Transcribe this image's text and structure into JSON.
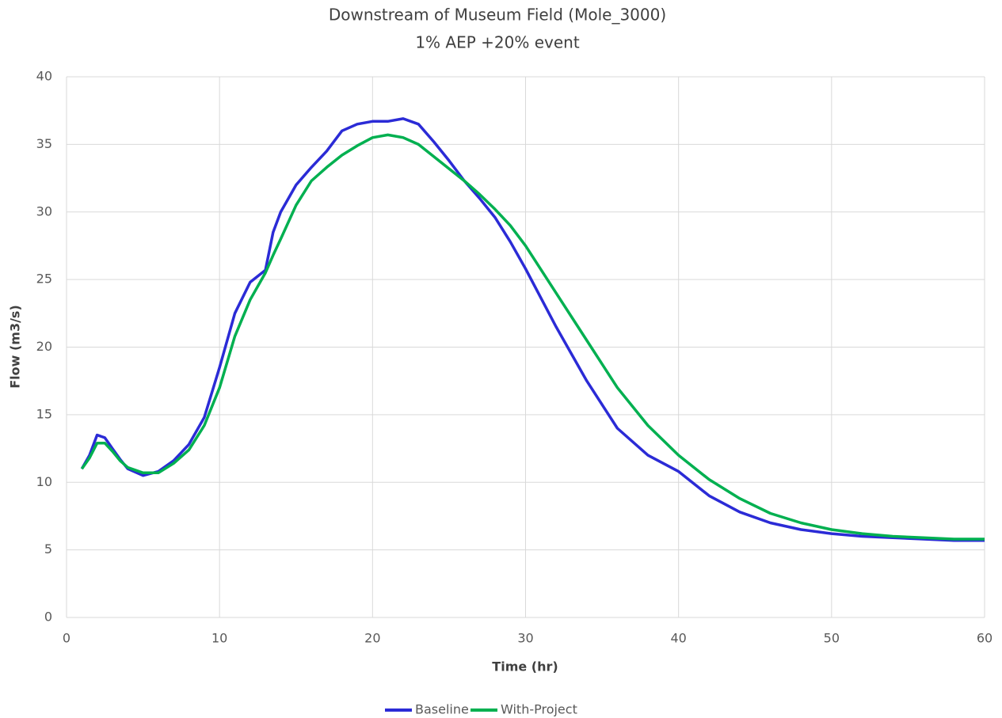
{
  "chart_data": {
    "type": "line",
    "title": "Downstream of Museum Field (Mole_3000)",
    "subtitle": "1% AEP +20% event",
    "x_label": "Time (hr)",
    "y_label": "Flow (m3/s)",
    "x": [
      1,
      1.5,
      2,
      2.5,
      3,
      3.5,
      4,
      5,
      6,
      7,
      8,
      9,
      10,
      11,
      12,
      13,
      13.5,
      14,
      15,
      16,
      17,
      18,
      19,
      20,
      21,
      22,
      23,
      24,
      25,
      26,
      27,
      28,
      29,
      30,
      32,
      34,
      36,
      38,
      40,
      42,
      44,
      46,
      48,
      50,
      52,
      54,
      56,
      58,
      60
    ],
    "series": [
      {
        "name": "Baseline",
        "color": "#2b2bd6",
        "values": [
          11,
          12,
          13.5,
          13.3,
          12.5,
          11.7,
          11,
          10.5,
          10.8,
          11.6,
          12.8,
          14.8,
          18.5,
          22.5,
          24.8,
          25.7,
          28.5,
          30,
          32,
          33.3,
          34.5,
          36,
          36.5,
          36.7,
          36.7,
          36.9,
          36.5,
          35.2,
          33.8,
          32.3,
          31,
          29.6,
          27.8,
          25.8,
          21.5,
          17.5,
          14,
          12,
          10.8,
          9,
          7.8,
          7,
          6.5,
          6.2,
          6,
          5.9,
          5.8,
          5.7,
          5.7
        ]
      },
      {
        "name": "With-Project",
        "color": "#00b050",
        "values": [
          11,
          11.8,
          12.9,
          12.9,
          12.3,
          11.6,
          11.1,
          10.7,
          10.7,
          11.4,
          12.4,
          14.2,
          17,
          20.8,
          23.5,
          25.5,
          26.8,
          28,
          30.5,
          32.3,
          33.3,
          34.2,
          34.9,
          35.5,
          35.7,
          35.5,
          35,
          34.1,
          33.2,
          32.3,
          31.3,
          30.2,
          29,
          27.5,
          24,
          20.5,
          17,
          14.2,
          12,
          10.2,
          8.8,
          7.7,
          7,
          6.5,
          6.2,
          6,
          5.9,
          5.8,
          5.8
        ]
      }
    ],
    "xlim": [
      0,
      60
    ],
    "xticks": [
      0,
      10,
      20,
      30,
      40,
      50,
      60
    ],
    "ylim": [
      0,
      40
    ],
    "yticks": [
      0,
      5,
      10,
      15,
      20,
      25,
      30,
      35,
      40
    ],
    "grid": true,
    "legend": "bottom"
  }
}
